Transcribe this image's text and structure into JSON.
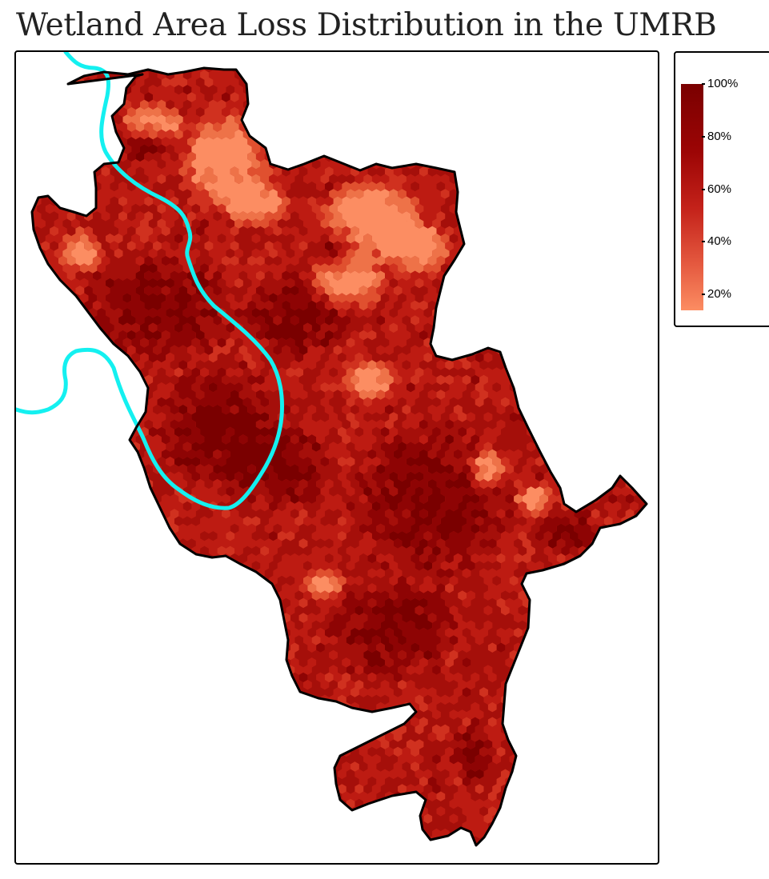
{
  "title": "Wetland Area Loss Distribution in the UMRB",
  "legend": {
    "labels": [
      "100%",
      "80%",
      "60%",
      "40%",
      "20%"
    ],
    "values": [
      1.0,
      0.8,
      0.6,
      0.4,
      0.2
    ],
    "scale_min": 0.14,
    "scale_max": 1.0,
    "colors": {
      "high": "#7a0000",
      "upper": "#9c0505",
      "mid": "#c4221a",
      "lower": "#e55a40",
      "low": "#fc8d62"
    }
  },
  "map": {
    "fill_palette": [
      "#7a0000",
      "#8e0404",
      "#a50f0a",
      "#bd1b12",
      "#d0311f",
      "#e0502f",
      "#ee7248",
      "#fc8d62"
    ],
    "boundary_color": "#000000",
    "river_color": "#14f0f0"
  }
}
